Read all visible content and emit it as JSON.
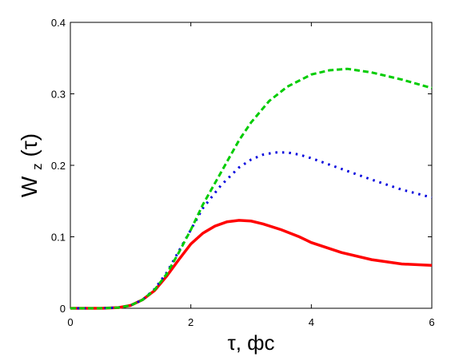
{
  "chart_data": {
    "type": "line",
    "xlabel": "τ, фс",
    "ylabel_main": "W",
    "ylabel_sub": "z",
    "ylabel_tail": "(τ)",
    "xlim": [
      0,
      6
    ],
    "ylim": [
      0,
      0.4
    ],
    "xticks": [
      0,
      2,
      4,
      6
    ],
    "xtick_labels": [
      "0",
      "2",
      "4",
      "6"
    ],
    "yticks": [
      0,
      0.1,
      0.2,
      0.3,
      0.4
    ],
    "ytick_labels": [
      "0",
      "0.1",
      "0.2",
      "0.3",
      "0.4"
    ],
    "grid": false,
    "legend": "none",
    "series": [
      {
        "color": "#ff0000",
        "style": "solid",
        "x": [
          0,
          0.5,
          0.8,
          1.0,
          1.2,
          1.4,
          1.6,
          1.8,
          2.0,
          2.2,
          2.4,
          2.6,
          2.8,
          3.0,
          3.2,
          3.5,
          3.8,
          4.0,
          4.5,
          5.0,
          5.5,
          6.0
        ],
        "y": [
          0,
          0,
          0.001,
          0.004,
          0.012,
          0.025,
          0.045,
          0.068,
          0.09,
          0.105,
          0.115,
          0.121,
          0.123,
          0.122,
          0.118,
          0.11,
          0.1,
          0.092,
          0.078,
          0.068,
          0.062,
          0.06
        ]
      },
      {
        "color": "#0000dd",
        "style": "dotted",
        "x": [
          0,
          0.5,
          0.8,
          1.0,
          1.2,
          1.4,
          1.6,
          1.8,
          2.0,
          2.2,
          2.5,
          2.8,
          3.0,
          3.2,
          3.4,
          3.6,
          3.8,
          4.0,
          4.5,
          5.0,
          5.5,
          6.0
        ],
        "y": [
          0,
          0,
          0.001,
          0.004,
          0.012,
          0.027,
          0.05,
          0.08,
          0.11,
          0.14,
          0.172,
          0.197,
          0.208,
          0.215,
          0.218,
          0.218,
          0.215,
          0.21,
          0.195,
          0.18,
          0.166,
          0.155
        ]
      },
      {
        "color": "#00cc00",
        "style": "dashed",
        "x": [
          0,
          0.5,
          0.8,
          1.0,
          1.2,
          1.4,
          1.6,
          1.8,
          2.0,
          2.2,
          2.5,
          2.8,
          3.0,
          3.3,
          3.6,
          4.0,
          4.3,
          4.6,
          5.0,
          5.5,
          6.0
        ],
        "y": [
          0,
          0,
          0.001,
          0.004,
          0.012,
          0.026,
          0.048,
          0.078,
          0.11,
          0.145,
          0.19,
          0.235,
          0.26,
          0.29,
          0.31,
          0.327,
          0.333,
          0.335,
          0.33,
          0.32,
          0.308
        ]
      }
    ]
  }
}
